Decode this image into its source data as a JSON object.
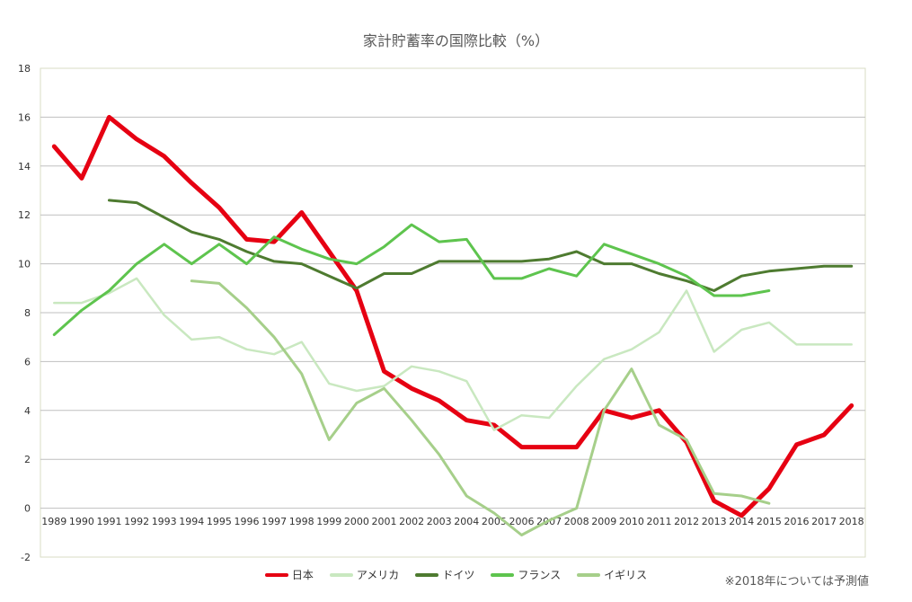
{
  "chart_data": {
    "type": "line",
    "title": "家計貯蓄率の国際比較（%）",
    "xlabel": "",
    "ylabel": "",
    "ylim": [
      -2,
      18
    ],
    "yticks": [
      -2,
      0,
      2,
      4,
      6,
      8,
      10,
      12,
      14,
      16,
      18
    ],
    "grid": true,
    "legend_position": "bottom",
    "x": [
      "1989",
      "1990",
      "1991",
      "1992",
      "1993",
      "1994",
      "1995",
      "1996",
      "1997",
      "1998",
      "1999",
      "2000",
      "2001",
      "2002",
      "2003",
      "2004",
      "2005",
      "2006",
      "2007",
      "2008",
      "2009",
      "2010",
      "2011",
      "2012",
      "2013",
      "2014",
      "2015",
      "2016",
      "2017",
      "2018"
    ],
    "series": [
      {
        "name": "日本",
        "color": "#e60012",
        "width": 5,
        "values": [
          14.8,
          13.5,
          16.0,
          15.1,
          14.4,
          13.3,
          12.3,
          11.0,
          10.9,
          12.1,
          10.5,
          8.9,
          5.6,
          4.9,
          4.4,
          3.6,
          3.4,
          2.5,
          2.5,
          2.5,
          4.0,
          3.7,
          4.0,
          2.7,
          0.3,
          -0.3,
          0.8,
          2.6,
          3.0,
          4.2
        ]
      },
      {
        "name": "アメリカ",
        "color": "#c9e8c0",
        "width": 2.5,
        "values": [
          8.4,
          8.4,
          8.8,
          9.4,
          7.9,
          6.9,
          7.0,
          6.5,
          6.3,
          6.8,
          5.1,
          4.8,
          5.0,
          5.8,
          5.6,
          5.2,
          3.2,
          3.8,
          3.7,
          5.0,
          6.1,
          6.5,
          7.2,
          8.9,
          6.4,
          7.3,
          7.6,
          6.7,
          6.7,
          6.7
        ]
      },
      {
        "name": "ドイツ",
        "color": "#4e7b30",
        "width": 3,
        "values": [
          null,
          null,
          12.6,
          12.5,
          11.9,
          11.3,
          11.0,
          10.5,
          10.1,
          10.0,
          9.5,
          9.0,
          9.6,
          9.6,
          10.1,
          10.1,
          10.1,
          10.1,
          10.2,
          10.5,
          10.0,
          10.0,
          9.6,
          9.3,
          8.9,
          9.5,
          9.7,
          9.8,
          9.9,
          9.9
        ]
      },
      {
        "name": "フランス",
        "color": "#5ec44e",
        "width": 3,
        "values": [
          7.1,
          8.1,
          8.9,
          10.0,
          10.8,
          10.0,
          10.8,
          10.0,
          11.1,
          10.6,
          10.2,
          10.0,
          10.7,
          11.6,
          10.9,
          11.0,
          9.4,
          9.4,
          9.8,
          9.5,
          10.8,
          10.4,
          10.0,
          9.5,
          8.7,
          8.7,
          8.9,
          null,
          null,
          null
        ]
      },
      {
        "name": "イギリス",
        "color": "#a6cf8a",
        "width": 3,
        "values": [
          null,
          null,
          null,
          null,
          null,
          9.3,
          9.2,
          8.2,
          7.0,
          5.5,
          2.8,
          4.3,
          4.9,
          3.6,
          2.2,
          0.5,
          -0.2,
          -1.1,
          -0.5,
          0.0,
          4.0,
          5.7,
          3.4,
          2.8,
          0.6,
          0.5,
          0.2,
          null,
          null,
          null
        ]
      }
    ],
    "note": "※2018年については予測値"
  }
}
